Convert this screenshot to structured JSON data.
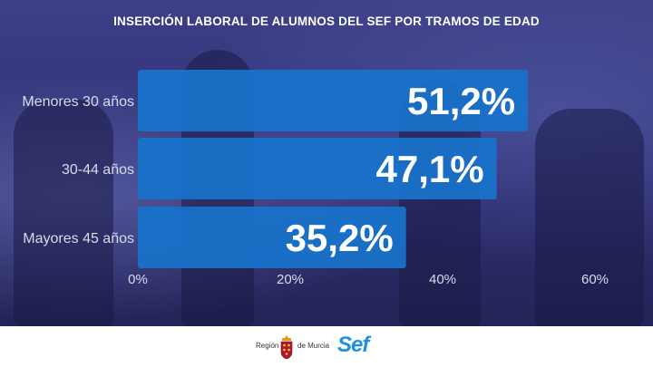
{
  "title": "INSERCIÓN LABORAL DE ALUMNOS DEL SEF POR TRAMOS DE EDAD",
  "chart_data": {
    "type": "bar",
    "orientation": "horizontal",
    "title": "INSERCIÓN LABORAL DE ALUMNOS DEL SEF POR TRAMOS DE EDAD",
    "categories": [
      "Menores 30 años",
      "30-44 años",
      "Mayores 45 años"
    ],
    "values": [
      51.2,
      47.1,
      35.2
    ],
    "value_labels": [
      "51,2%",
      "47,1%",
      "35,2%"
    ],
    "xlim": [
      0,
      60
    ],
    "xticks": [
      "0%",
      "20%",
      "40%",
      "60%"
    ],
    "grid": false,
    "bar_color": "#1872c9"
  },
  "footer": {
    "region_left": "Región",
    "region_right": "de Murcia",
    "brand": "Sef"
  },
  "colors": {
    "bar": "#1872c9",
    "text": "#ffffff",
    "tick": "#d9dbef",
    "brand": "#1f8fe0",
    "crest": "#b0182a"
  }
}
